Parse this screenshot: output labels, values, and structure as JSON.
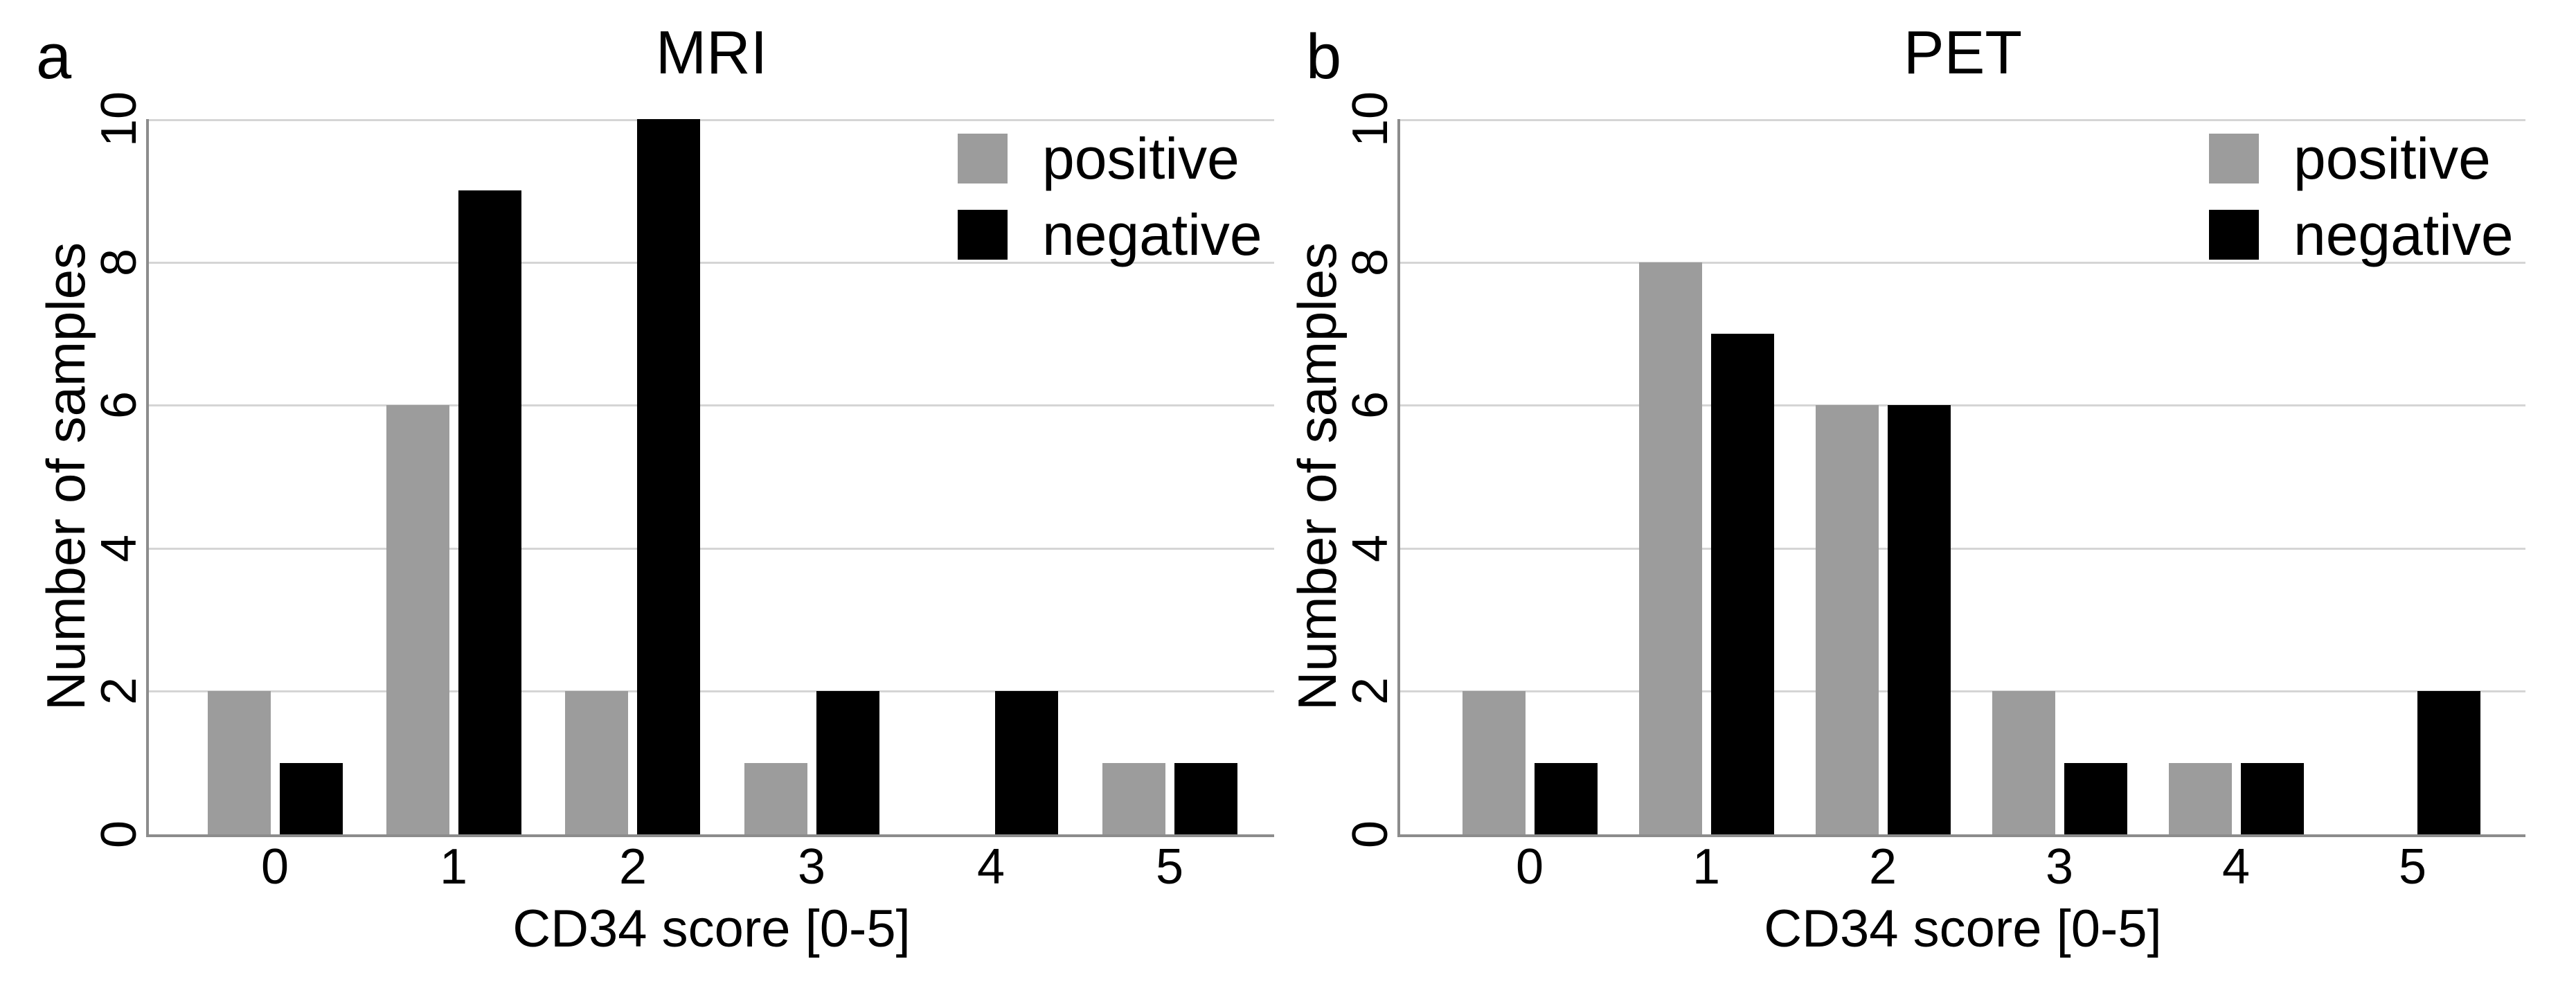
{
  "figure": {
    "background": "#ffffff",
    "panel_count": 2
  },
  "colors": {
    "positive_bar": "#9c9c9c",
    "negative_bar": "#000000",
    "gridline": "#d5d5d5",
    "axis_line": "#8c8c8c",
    "text": "#000000"
  },
  "chart_data": [
    {
      "type": "bar",
      "panel_label": "a",
      "title": "MRI",
      "categories": [
        "0",
        "1",
        "2",
        "3",
        "4",
        "5"
      ],
      "series": [
        {
          "name": "positive",
          "color": "#9c9c9c",
          "values": [
            2,
            6,
            2,
            1,
            0,
            1
          ]
        },
        {
          "name": "negative",
          "color": "#000000",
          "values": [
            1,
            9,
            10,
            2,
            2,
            1
          ]
        }
      ],
      "xlabel": "CD34 score [0-5]",
      "ylabel": "Number of samples",
      "ylim": [
        0,
        10
      ],
      "yticks": [
        0,
        2,
        4,
        6,
        8,
        10
      ],
      "grid": "horizontal",
      "legend_position": "top-right"
    },
    {
      "type": "bar",
      "panel_label": "b",
      "title": "PET",
      "categories": [
        "0",
        "1",
        "2",
        "3",
        "4",
        "5"
      ],
      "series": [
        {
          "name": "positive",
          "color": "#9c9c9c",
          "values": [
            2,
            8,
            6,
            2,
            1,
            0
          ]
        },
        {
          "name": "negative",
          "color": "#000000",
          "values": [
            1,
            7,
            6,
            1,
            1,
            2
          ]
        }
      ],
      "xlabel": "CD34 score [0-5]",
      "ylabel": "Number of samples",
      "ylim": [
        0,
        10
      ],
      "yticks": [
        0,
        2,
        4,
        6,
        8,
        10
      ],
      "grid": "horizontal",
      "legend_position": "top-right"
    }
  ]
}
